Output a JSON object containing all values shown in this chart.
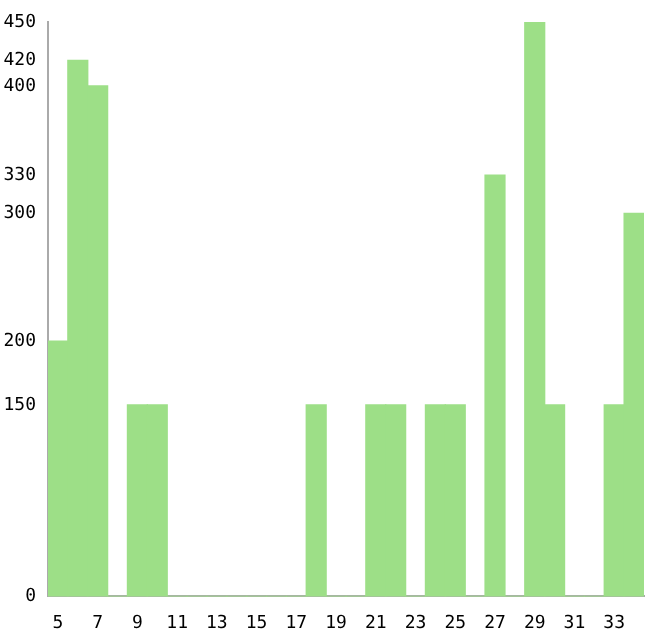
{
  "chart_data": {
    "type": "bar",
    "categories": [
      "5",
      null,
      "7",
      null,
      "9",
      null,
      "11",
      null,
      "13",
      null,
      "15",
      null,
      "17",
      null,
      "19",
      null,
      "21",
      null,
      "23",
      null,
      "25",
      null,
      "27",
      null,
      "29",
      null,
      "31",
      null,
      "33",
      null
    ],
    "values": [
      200,
      420,
      400,
      0,
      150,
      150,
      0,
      0,
      0,
      0,
      0,
      0,
      0,
      150,
      0,
      0,
      150,
      150,
      0,
      150,
      150,
      0,
      330,
      0,
      450,
      150,
      0,
      0,
      150,
      300
    ],
    "color": "#9ddf87",
    "ylim": [
      0,
      450
    ],
    "yticks": [
      0,
      150,
      200,
      300,
      330,
      400,
      420,
      450
    ],
    "grid": false,
    "legend": false
  }
}
